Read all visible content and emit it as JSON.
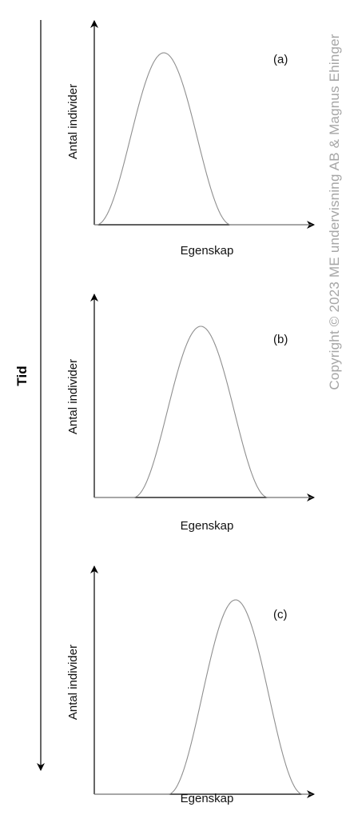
{
  "time_axis": {
    "label": "Tid"
  },
  "copyright": "Copyright © 2023 ME undervisning AB & Magnus Ehinger",
  "panels": [
    {
      "id": "a",
      "tag": "(a)",
      "xlabel": "Egenskap",
      "ylabel": "Antal individer",
      "peak_position": 0.32
    },
    {
      "id": "b",
      "tag": "(b)",
      "xlabel": "Egenskap",
      "ylabel": "Antal individer",
      "peak_position": 0.49
    },
    {
      "id": "c",
      "tag": "(c)",
      "xlabel": "Egenskap",
      "ylabel": "Antal individer",
      "peak_position": 0.65
    }
  ]
}
